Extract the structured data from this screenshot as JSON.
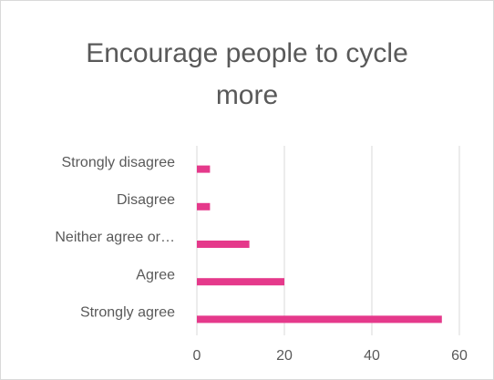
{
  "chart_data": {
    "type": "hbar",
    "title": "Encourage people to cycle more",
    "categories": [
      "Strongly disagree",
      "Disagree",
      "Neither agree or…",
      "Agree",
      "Strongly agree"
    ],
    "values": [
      3,
      3,
      12,
      20,
      56
    ],
    "color": "#e5398b",
    "xlim": [
      0,
      60
    ],
    "xticks": [
      0,
      20,
      40,
      60
    ],
    "grid": true
  }
}
